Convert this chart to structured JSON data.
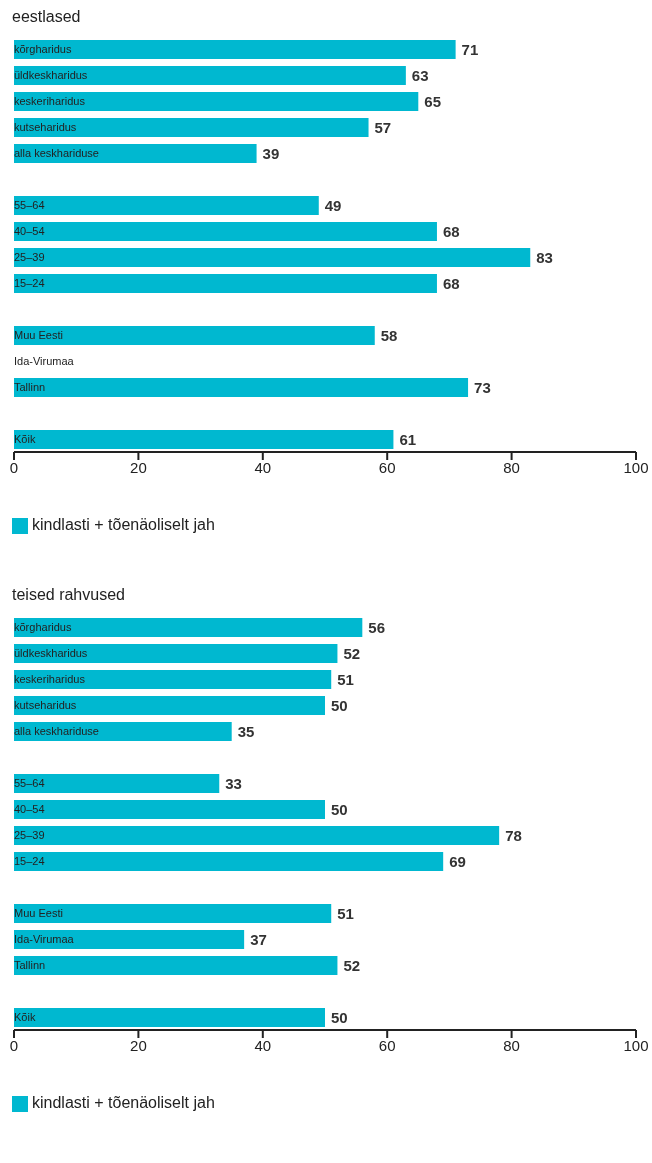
{
  "chart_data": [
    {
      "type": "bar",
      "orientation": "horizontal",
      "title": "eestlased",
      "categories": [
        "kõrgharidus",
        "üldkeskharidus",
        "keskeriharidus",
        "kutseharidus",
        "alla keskhariduse",
        null,
        "55–64",
        "40–54",
        "25–39",
        "15–24",
        null,
        "Muu Eesti",
        "Ida-Virumaa",
        "Tallinn",
        null,
        "Kõik"
      ],
      "series": [
        {
          "name": "kindlasti + tõenäoliselt jah",
          "color": "#00b8d0",
          "values": [
            71,
            63,
            65,
            57,
            39,
            null,
            49,
            68,
            83,
            68,
            null,
            58,
            null,
            73,
            null,
            61
          ]
        }
      ],
      "xlim": [
        0,
        100
      ],
      "xticks": [
        0,
        20,
        40,
        60,
        80,
        100
      ],
      "data_labels": true,
      "legend": "bottom",
      "grid": false
    },
    {
      "type": "bar",
      "orientation": "horizontal",
      "title": "teised rahvused",
      "categories": [
        "kõrgharidus",
        "üldkeskharidus",
        "keskeriharidus",
        "kutseharidus",
        "alla keskhariduse",
        null,
        "55–64",
        "40–54",
        "25–39",
        "15–24",
        null,
        "Muu Eesti",
        "Ida-Virumaa",
        "Tallinn",
        null,
        "Kõik"
      ],
      "series": [
        {
          "name": "kindlasti + tõenäoliselt jah",
          "color": "#00b8d0",
          "values": [
            56,
            52,
            51,
            50,
            35,
            null,
            33,
            50,
            78,
            69,
            null,
            51,
            37,
            52,
            null,
            50
          ]
        }
      ],
      "xlim": [
        0,
        100
      ],
      "xticks": [
        0,
        20,
        40,
        60,
        80,
        100
      ],
      "data_labels": true,
      "legend": "bottom",
      "grid": false
    }
  ]
}
